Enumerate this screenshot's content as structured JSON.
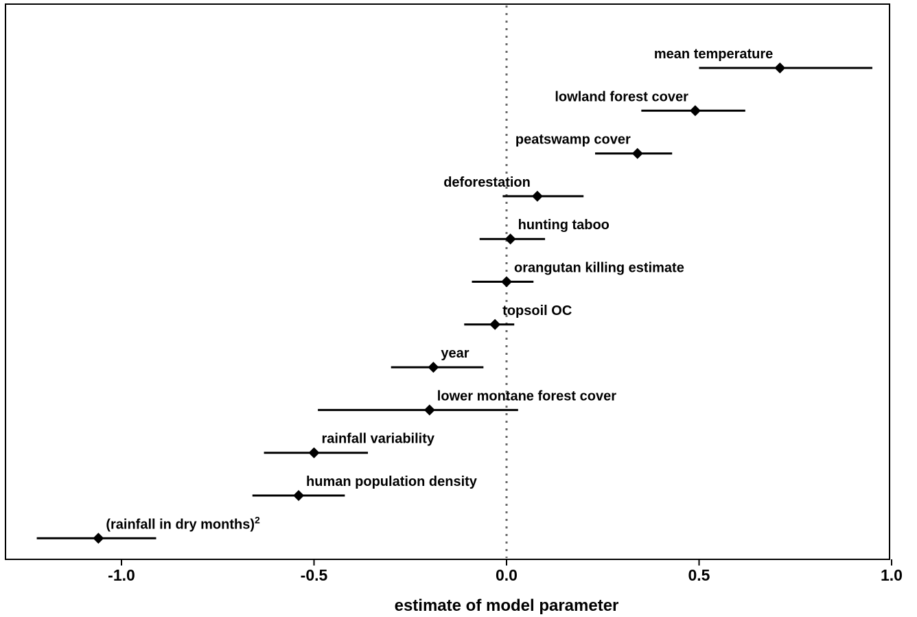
{
  "chart_data": {
    "type": "forest",
    "xlabel": "estimate of model parameter",
    "ylabel": "",
    "xlim": [
      -1.3,
      1.0
    ],
    "xticks": [
      -1.0,
      -0.5,
      0.0,
      0.5,
      1.0
    ],
    "xtick_labels": [
      "-1.0",
      "-0.5",
      "0.0",
      "0.5",
      "1.0"
    ],
    "reference_line": 0.0,
    "grid": false,
    "series": [
      {
        "label": "mean temperature",
        "estimate": 0.71,
        "lower": 0.5,
        "upper": 0.95
      },
      {
        "label": "lowland forest cover",
        "estimate": 0.49,
        "lower": 0.35,
        "upper": 0.62
      },
      {
        "label": "peatswamp cover",
        "estimate": 0.34,
        "lower": 0.23,
        "upper": 0.43
      },
      {
        "label": "deforestation",
        "estimate": 0.08,
        "lower": -0.01,
        "upper": 0.2
      },
      {
        "label": "hunting taboo",
        "estimate": 0.01,
        "lower": -0.07,
        "upper": 0.1
      },
      {
        "label": "orangutan killing estimate",
        "estimate": 0.0,
        "lower": -0.09,
        "upper": 0.07
      },
      {
        "label": "topsoil OC",
        "estimate": -0.03,
        "lower": -0.11,
        "upper": 0.02
      },
      {
        "label": "year",
        "estimate": -0.19,
        "lower": -0.3,
        "upper": -0.06
      },
      {
        "label": "lower montane forest cover",
        "estimate": -0.2,
        "lower": -0.49,
        "upper": 0.03
      },
      {
        "label": "rainfall variability",
        "estimate": -0.5,
        "lower": -0.63,
        "upper": -0.36
      },
      {
        "label": "human population density",
        "estimate": -0.54,
        "lower": -0.66,
        "upper": -0.42
      },
      {
        "label": "(rainfall in dry months)",
        "label_superscript": "2",
        "estimate": -1.06,
        "lower": -1.22,
        "upper": -0.91
      }
    ]
  }
}
